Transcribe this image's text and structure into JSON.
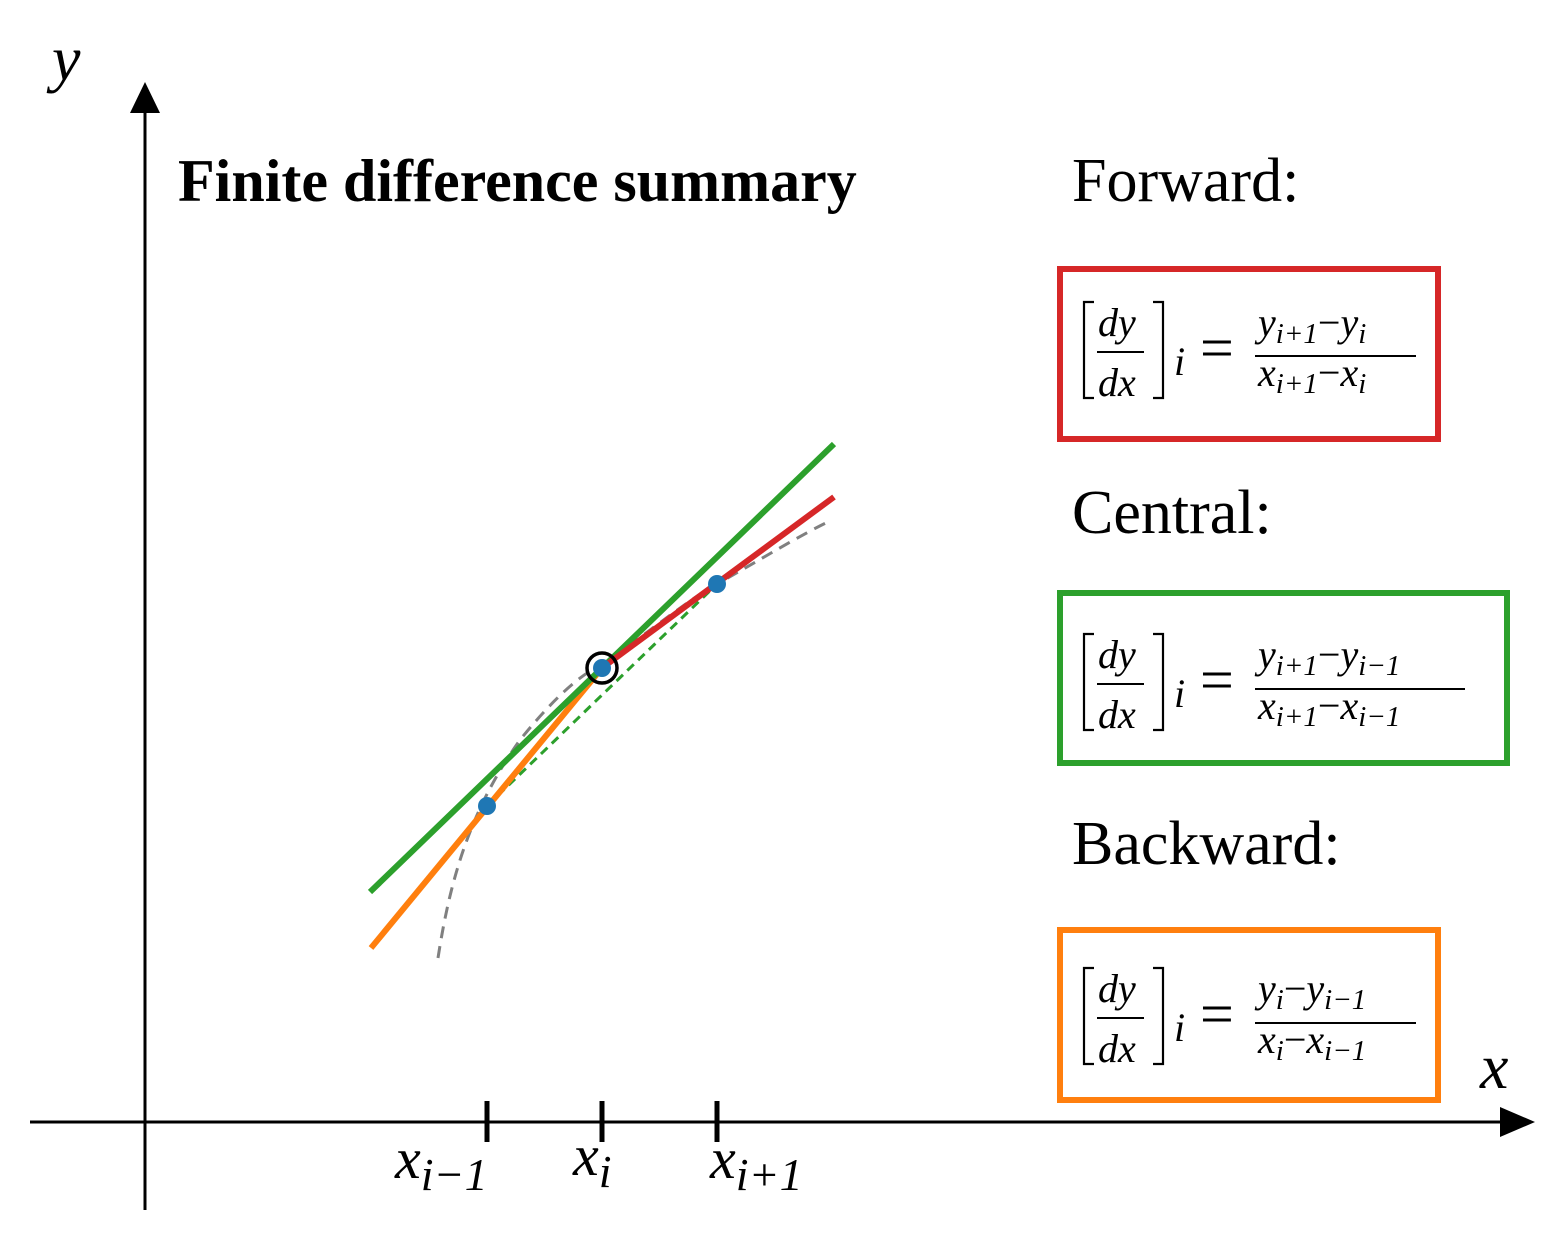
{
  "title": "Finite difference summary",
  "axes": {
    "x_label": "x",
    "y_label": "y"
  },
  "ticks": [
    {
      "base": "x",
      "sub": "i−1"
    },
    {
      "base": "x",
      "sub": "i"
    },
    {
      "base": "x",
      "sub": "i+1"
    }
  ],
  "methods": {
    "forward": {
      "label": "Forward:",
      "color": "#d62728",
      "lhs": {
        "num": "dy",
        "den": "dx",
        "sub": "i"
      },
      "rhs": {
        "num": [
          {
            "b": "y",
            "s": "i+1"
          },
          {
            "op": "−"
          },
          {
            "b": "y",
            "s": "i"
          }
        ],
        "den": [
          {
            "b": "x",
            "s": "i+1"
          },
          {
            "op": "−"
          },
          {
            "b": "x",
            "s": "i"
          }
        ]
      }
    },
    "central": {
      "label": "Central:",
      "color": "#2ca02c",
      "lhs": {
        "num": "dy",
        "den": "dx",
        "sub": "i"
      },
      "rhs": {
        "num": [
          {
            "b": "y",
            "s": "i+1"
          },
          {
            "op": "−"
          },
          {
            "b": "y",
            "s": "i−1"
          }
        ],
        "den": [
          {
            "b": "x",
            "s": "i+1"
          },
          {
            "op": "−"
          },
          {
            "b": "x",
            "s": "i−1"
          }
        ]
      }
    },
    "backward": {
      "label": "Backward:",
      "color": "#ff7f0e",
      "lhs": {
        "num": "dy",
        "den": "dx",
        "sub": "i"
      },
      "rhs": {
        "num": [
          {
            "b": "y",
            "s": "i"
          },
          {
            "op": "−"
          },
          {
            "b": "y",
            "s": "i−1"
          }
        ],
        "den": [
          {
            "b": "x",
            "s": "i"
          },
          {
            "op": "−"
          },
          {
            "b": "x",
            "s": "i−1"
          }
        ]
      }
    }
  },
  "colors": {
    "points": "#1f77b4",
    "curve": "#808080",
    "axes": "#000000"
  }
}
